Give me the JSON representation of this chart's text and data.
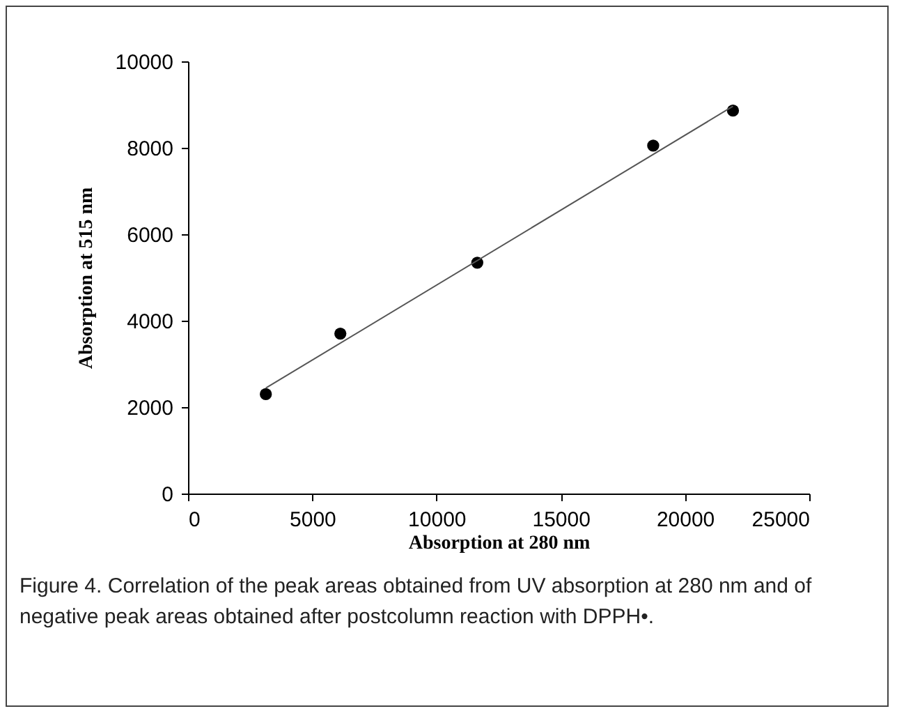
{
  "chart_data": {
    "type": "scatter",
    "xlabel": "Absorption at 280 nm",
    "ylabel": "Absorption at 515 nm",
    "annotations": [
      "Figure 4. Correlation of the peak areas obtained from UV absorption at 280 nm and of negative peak areas obtained after postcolumn reaction with DPPH•."
    ],
    "series": [
      {
        "color": "#000000",
        "x": [
          3130,
          6130,
          11640,
          18720,
          21930
        ],
        "values": [
          2300,
          3700,
          5340,
          8050,
          8860
        ]
      },
      {
        "type": "line",
        "marker": "none",
        "color": "#555555",
        "x": [
          3130,
          21930
        ],
        "values": [
          2440,
          8960
        ]
      }
    ],
    "marker": "circle",
    "xlim": [
      0,
      25000
    ],
    "xticks": [
      0,
      5000,
      10000,
      15000,
      20000,
      25000
    ],
    "ylim": [
      0,
      10000
    ],
    "yticks": [
      0,
      2000,
      4000,
      6000,
      8000,
      10000
    ],
    "grid": false
  }
}
